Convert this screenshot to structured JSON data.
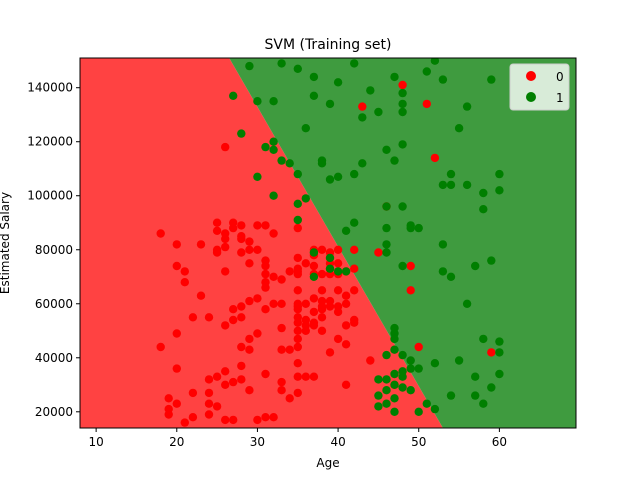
{
  "chart_data": {
    "type": "scatter",
    "title": "SVM (Training set)",
    "xlabel": "Age",
    "ylabel": "Estimated Salary",
    "xlim": [
      8,
      69.5
    ],
    "ylim": [
      14000,
      151000
    ],
    "x_ticks": [
      10,
      20,
      30,
      40,
      50,
      60
    ],
    "y_ticks": [
      20000,
      40000,
      60000,
      80000,
      100000,
      120000,
      140000
    ],
    "grid": false,
    "legend": {
      "placement": "top-right",
      "entries": [
        "0",
        "1"
      ]
    },
    "region_colors": {
      "0": "#ff4242",
      "1": "#3f9b3f"
    },
    "point_colors": {
      "0": "#ff0000",
      "1": "#007f00"
    },
    "decision_boundary": [
      [
        26.5,
        151000
      ],
      [
        53,
        14000
      ]
    ],
    "series": [
      {
        "name": "0",
        "points": [
          [
            18,
            86000
          ],
          [
            18,
            44000
          ],
          [
            19,
            25000
          ],
          [
            19,
            21000
          ],
          [
            19,
            19000
          ],
          [
            20,
            82000
          ],
          [
            20,
            74000
          ],
          [
            20,
            49000
          ],
          [
            20,
            36000
          ],
          [
            20,
            23000
          ],
          [
            21,
            72000
          ],
          [
            21,
            68000
          ],
          [
            21,
            16000
          ],
          [
            22,
            55000
          ],
          [
            22,
            27000
          ],
          [
            22,
            18000
          ],
          [
            23,
            82000
          ],
          [
            23,
            63000
          ],
          [
            24,
            55000
          ],
          [
            24,
            32000
          ],
          [
            24,
            27000
          ],
          [
            24,
            23000
          ],
          [
            24,
            19000
          ],
          [
            25,
            90000
          ],
          [
            25,
            87000
          ],
          [
            25,
            80000
          ],
          [
            25,
            79000
          ],
          [
            25,
            33000
          ],
          [
            25,
            22000
          ],
          [
            26,
            86000
          ],
          [
            26,
            84000
          ],
          [
            26,
            81000
          ],
          [
            26,
            72000
          ],
          [
            26,
            52000
          ],
          [
            26,
            35000
          ],
          [
            26,
            30000
          ],
          [
            26,
            17000
          ],
          [
            26,
            118000
          ],
          [
            27,
            90000
          ],
          [
            27,
            88000
          ],
          [
            27,
            58000
          ],
          [
            27,
            54000
          ],
          [
            27,
            31000
          ],
          [
            27,
            17000
          ],
          [
            28,
            89000
          ],
          [
            28,
            85000
          ],
          [
            28,
            84000
          ],
          [
            28,
            79000
          ],
          [
            28,
            59000
          ],
          [
            28,
            55000
          ],
          [
            28,
            44000
          ],
          [
            28,
            37000
          ],
          [
            28,
            32000
          ],
          [
            29,
            83000
          ],
          [
            29,
            80000
          ],
          [
            29,
            75000
          ],
          [
            29,
            61000
          ],
          [
            29,
            47000
          ],
          [
            29,
            43000
          ],
          [
            29,
            28000
          ],
          [
            30,
            89000
          ],
          [
            30,
            80000
          ],
          [
            30,
            62000
          ],
          [
            30,
            49000
          ],
          [
            30,
            17000
          ],
          [
            31,
            89000
          ],
          [
            31,
            76000
          ],
          [
            31,
            74000
          ],
          [
            31,
            71000
          ],
          [
            31,
            68000
          ],
          [
            31,
            66000
          ],
          [
            31,
            58000
          ],
          [
            31,
            34000
          ],
          [
            31,
            18000
          ],
          [
            32,
            86000
          ],
          [
            32,
            70000
          ],
          [
            32,
            60000
          ],
          [
            32,
            18000
          ],
          [
            33,
            69000
          ],
          [
            33,
            60000
          ],
          [
            33,
            51000
          ],
          [
            33,
            43000
          ],
          [
            33,
            31000
          ],
          [
            33,
            28000
          ],
          [
            34,
            72000
          ],
          [
            34,
            43000
          ],
          [
            34,
            25000
          ],
          [
            35,
            88000
          ],
          [
            35,
            77000
          ],
          [
            35,
            73000
          ],
          [
            35,
            72000
          ],
          [
            35,
            71000
          ],
          [
            35,
            65000
          ],
          [
            35,
            60000
          ],
          [
            35,
            59000
          ],
          [
            35,
            58000
          ],
          [
            35,
            55000
          ],
          [
            35,
            53000
          ],
          [
            35,
            50000
          ],
          [
            35,
            47000
          ],
          [
            35,
            44000
          ],
          [
            35,
            38000
          ],
          [
            35,
            33000
          ],
          [
            35,
            27000
          ],
          [
            36,
            75000
          ],
          [
            36,
            60000
          ],
          [
            36,
            54000
          ],
          [
            36,
            52000
          ],
          [
            36,
            50000
          ],
          [
            36,
            33000
          ],
          [
            37,
            80000
          ],
          [
            37,
            78000
          ],
          [
            37,
            74000
          ],
          [
            37,
            71000
          ],
          [
            37,
            62000
          ],
          [
            37,
            57000
          ],
          [
            37,
            53000
          ],
          [
            37,
            52000
          ],
          [
            37,
            33000
          ],
          [
            38,
            80000
          ],
          [
            38,
            71000
          ],
          [
            38,
            65000
          ],
          [
            38,
            61000
          ],
          [
            38,
            59000
          ],
          [
            38,
            58000
          ],
          [
            38,
            55000
          ],
          [
            38,
            50000
          ],
          [
            39,
            79000
          ],
          [
            39,
            77000
          ],
          [
            39,
            75000
          ],
          [
            39,
            73000
          ],
          [
            39,
            71000
          ],
          [
            39,
            61000
          ],
          [
            39,
            59000
          ],
          [
            39,
            42000
          ],
          [
            40,
            80000
          ],
          [
            40,
            75000
          ],
          [
            40,
            71000
          ],
          [
            40,
            65000
          ],
          [
            40,
            59000
          ],
          [
            40,
            57000
          ],
          [
            40,
            47000
          ],
          [
            41,
            72000
          ],
          [
            41,
            63000
          ],
          [
            41,
            60000
          ],
          [
            41,
            52000
          ],
          [
            41,
            45000
          ],
          [
            41,
            30000
          ],
          [
            42,
            80000
          ],
          [
            42,
            73000
          ],
          [
            42,
            65000
          ],
          [
            42,
            54000
          ],
          [
            42,
            53000
          ],
          [
            43,
            133000
          ],
          [
            44,
            39000
          ],
          [
            45,
            79000
          ],
          [
            46,
            96000
          ],
          [
            47,
            30000
          ],
          [
            48,
            141000
          ],
          [
            49,
            74000
          ],
          [
            49,
            65000
          ],
          [
            50,
            44000
          ],
          [
            51,
            134000
          ],
          [
            52,
            114000
          ],
          [
            59,
            42000
          ]
        ]
      },
      {
        "name": "1",
        "points": [
          [
            27,
            137000
          ],
          [
            28,
            123000
          ],
          [
            29,
            148000
          ],
          [
            30,
            135000
          ],
          [
            30,
            107000
          ],
          [
            31,
            118000
          ],
          [
            32,
            120000
          ],
          [
            32,
            117000
          ],
          [
            32,
            135000
          ],
          [
            32,
            100000
          ],
          [
            33,
            149000
          ],
          [
            33,
            113000
          ],
          [
            34,
            112000
          ],
          [
            35,
            147000
          ],
          [
            35,
            108000
          ],
          [
            35,
            97000
          ],
          [
            35,
            91000
          ],
          [
            36,
            125000
          ],
          [
            36,
            99000
          ],
          [
            37,
            144000
          ],
          [
            37,
            137000
          ],
          [
            37,
            79000
          ],
          [
            37,
            70000
          ],
          [
            38,
            113000
          ],
          [
            38,
            112000
          ],
          [
            39,
            134000
          ],
          [
            39,
            106000
          ],
          [
            39,
            77000
          ],
          [
            39,
            73000
          ],
          [
            40,
            142000
          ],
          [
            40,
            107000
          ],
          [
            40,
            72000
          ],
          [
            41,
            87000
          ],
          [
            41,
            72000
          ],
          [
            42,
            149000
          ],
          [
            42,
            108000
          ],
          [
            42,
            90000
          ],
          [
            43,
            129000
          ],
          [
            43,
            112000
          ],
          [
            44,
            139000
          ],
          [
            45,
            131000
          ],
          [
            45,
            32000
          ],
          [
            45,
            26000
          ],
          [
            45,
            22000
          ],
          [
            46,
            117000
          ],
          [
            46,
            96000
          ],
          [
            46,
            88000
          ],
          [
            46,
            82000
          ],
          [
            46,
            79000
          ],
          [
            46,
            41000
          ],
          [
            46,
            32000
          ],
          [
            46,
            28000
          ],
          [
            46,
            23000
          ],
          [
            47,
            144000
          ],
          [
            47,
            113000
          ],
          [
            47,
            51000
          ],
          [
            47,
            49000
          ],
          [
            47,
            47000
          ],
          [
            47,
            43000
          ],
          [
            47,
            34000
          ],
          [
            47,
            30000
          ],
          [
            47,
            25000
          ],
          [
            47,
            20000
          ],
          [
            48,
            138000
          ],
          [
            48,
            134000
          ],
          [
            48,
            131000
          ],
          [
            48,
            119000
          ],
          [
            48,
            96000
          ],
          [
            48,
            74000
          ],
          [
            48,
            41000
          ],
          [
            48,
            35000
          ],
          [
            48,
            33000
          ],
          [
            48,
            29000
          ],
          [
            49,
            89000
          ],
          [
            49,
            88000
          ],
          [
            49,
            39000
          ],
          [
            49,
            36000
          ],
          [
            49,
            28000
          ],
          [
            50,
            88000
          ],
          [
            50,
            36000
          ],
          [
            50,
            20000
          ],
          [
            51,
            146000
          ],
          [
            51,
            23000
          ],
          [
            52,
            150000
          ],
          [
            52,
            38000
          ],
          [
            52,
            21000
          ],
          [
            53,
            143000
          ],
          [
            53,
            104000
          ],
          [
            53,
            82000
          ],
          [
            53,
            72000
          ],
          [
            54,
            108000
          ],
          [
            54,
            104000
          ],
          [
            54,
            70000
          ],
          [
            54,
            26000
          ],
          [
            55,
            125000
          ],
          [
            55,
            39000
          ],
          [
            56,
            133000
          ],
          [
            56,
            104000
          ],
          [
            56,
            60000
          ],
          [
            57,
            74000
          ],
          [
            57,
            33000
          ],
          [
            57,
            26000
          ],
          [
            58,
            101000
          ],
          [
            58,
            95000
          ],
          [
            58,
            47000
          ],
          [
            58,
            23000
          ],
          [
            59,
            143000
          ],
          [
            59,
            76000
          ],
          [
            59,
            29000
          ],
          [
            60,
            108000
          ],
          [
            60,
            102000
          ],
          [
            60,
            46000
          ],
          [
            60,
            42000
          ],
          [
            60,
            34000
          ]
        ]
      }
    ]
  }
}
